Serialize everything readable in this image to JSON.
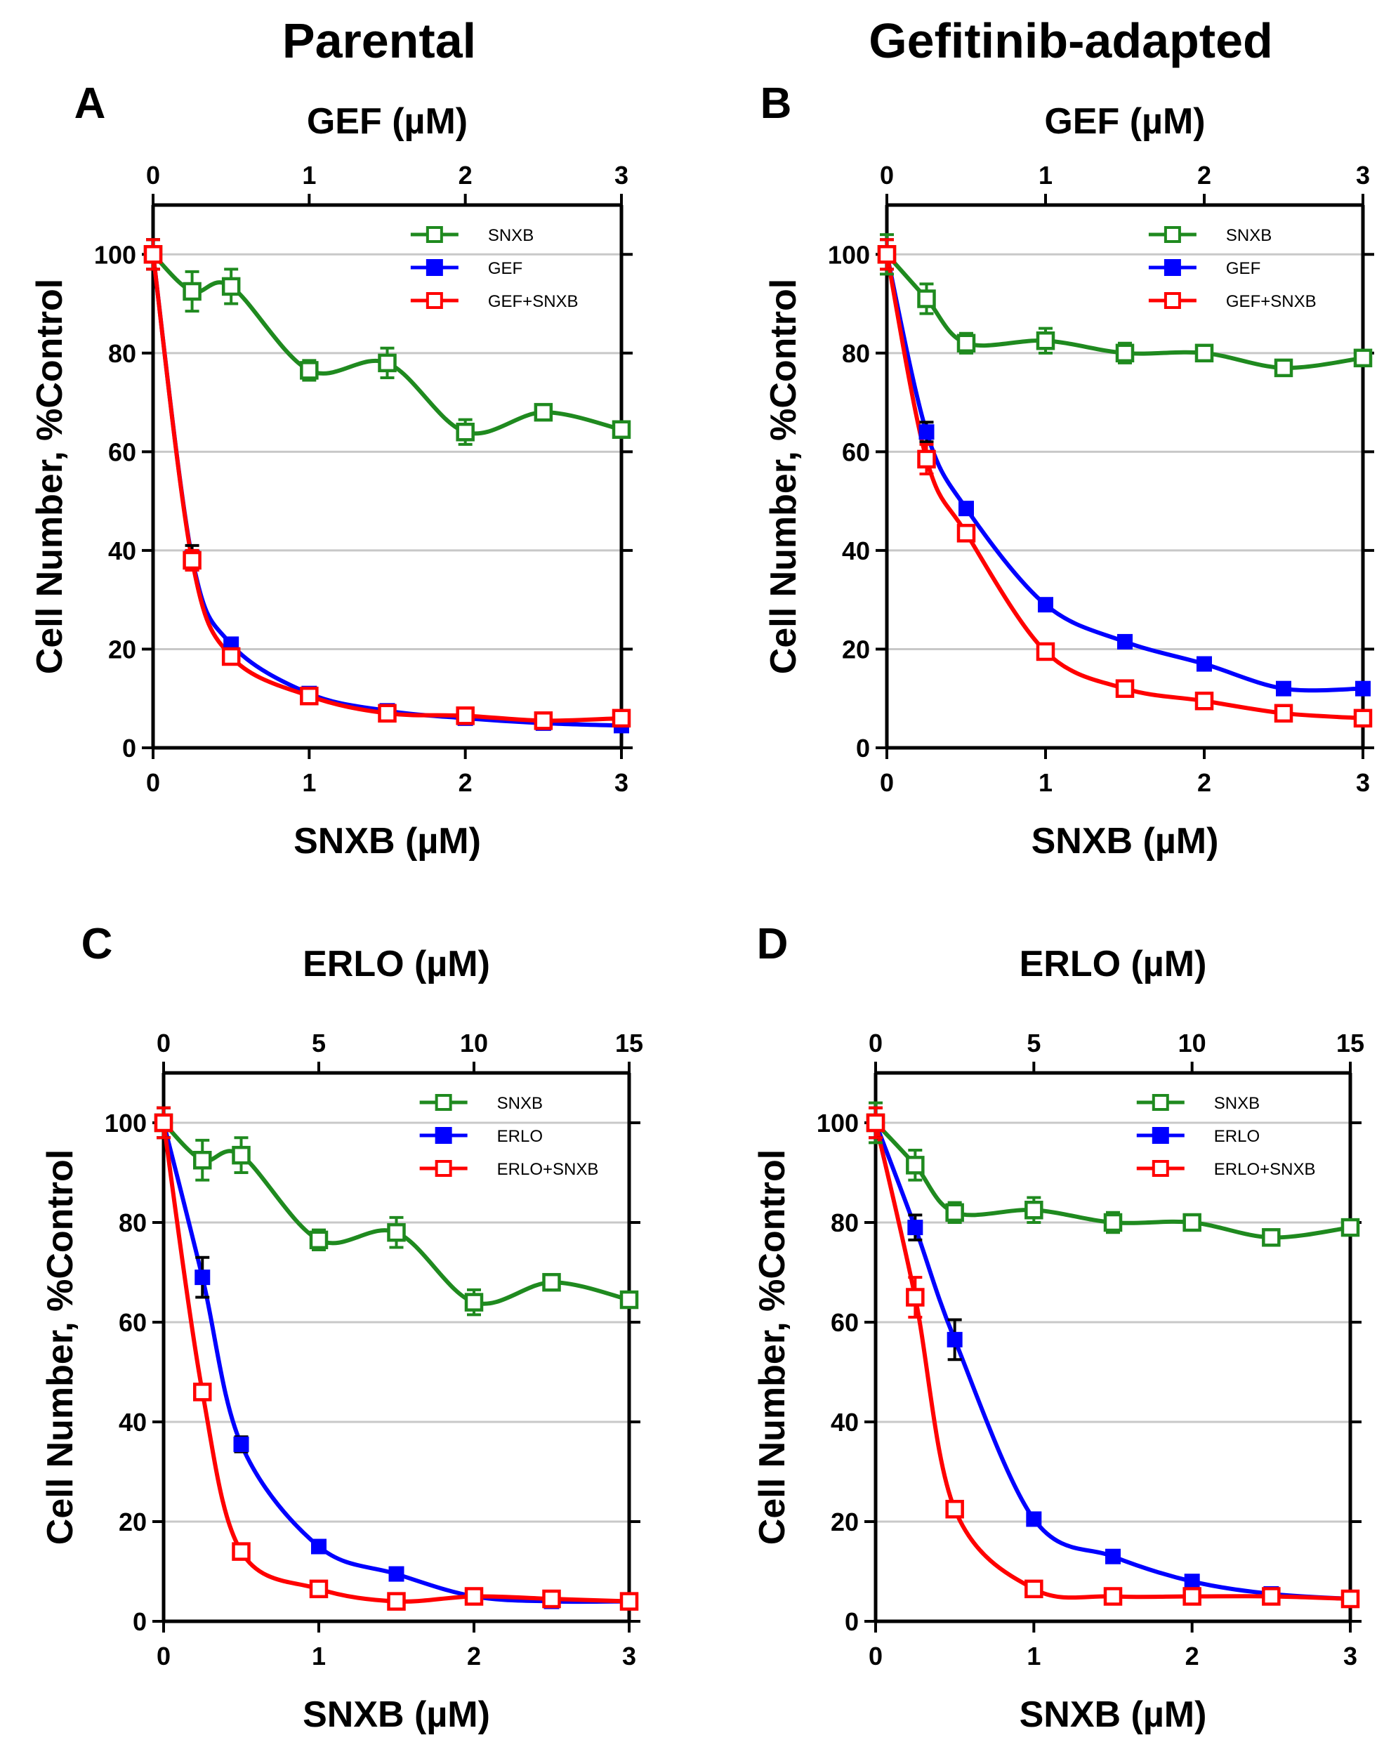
{
  "column_titles": {
    "left": "Parental",
    "right": "Gefitinib-adapted"
  },
  "colors": {
    "SNXB": "#1f8a1f",
    "GEF": "#0000ff",
    "ERLO": "#0000ff",
    "GEF+SNXB": "#ff0000",
    "ERLO+SNXB": "#ff0000",
    "axis": "#000000",
    "grid": "#c8c8c8"
  },
  "chart_data": [
    {
      "panel": "A",
      "type": "scatter",
      "title": "Parental",
      "xlabel": "SNXB (µM)",
      "ylabel": "Cell Number, %Control",
      "top_xlabel": "GEF (µM)",
      "xlim": [
        0,
        3
      ],
      "ylim": [
        0,
        110
      ],
      "xticks": [
        "0",
        "1",
        "2",
        "3"
      ],
      "top_xticks": [
        "0",
        "1",
        "2",
        "3"
      ],
      "yticks": [
        "0",
        "20",
        "40",
        "60",
        "80",
        "100"
      ],
      "x": [
        0,
        0.25,
        0.5,
        1,
        1.5,
        2,
        2.5,
        3
      ],
      "series": [
        {
          "name": "SNXB",
          "marker": "open-square",
          "values": [
            100,
            92.5,
            93.5,
            76.5,
            78,
            64,
            68,
            64.5
          ],
          "errors": [
            3,
            4,
            3.5,
            2,
            3,
            2.5,
            1,
            1
          ]
        },
        {
          "name": "GEF",
          "marker": "filled-square",
          "values": [
            100,
            38.5,
            21,
            11,
            7.5,
            6,
            5,
            4.5
          ],
          "errors": [
            3,
            2.5,
            1,
            1,
            1,
            1,
            1,
            1
          ]
        },
        {
          "name": "GEF+SNXB",
          "marker": "open-square",
          "values": [
            100,
            38,
            18.5,
            10.5,
            7,
            6.5,
            5.5,
            6
          ],
          "errors": [
            3,
            2,
            1,
            1,
            1,
            1,
            1,
            1
          ]
        }
      ],
      "legend": [
        "SNXB",
        "GEF",
        "GEF+SNXB"
      ]
    },
    {
      "panel": "B",
      "type": "scatter",
      "title": "Gefitinib-adapted",
      "xlabel": "SNXB (µM)",
      "ylabel": "Cell Number, %Control",
      "top_xlabel": "GEF (µM)",
      "xlim": [
        0,
        3
      ],
      "ylim": [
        0,
        110
      ],
      "xticks": [
        "0",
        "1",
        "2",
        "3"
      ],
      "top_xticks": [
        "0",
        "1",
        "2",
        "3"
      ],
      "yticks": [
        "0",
        "20",
        "40",
        "60",
        "80",
        "100"
      ],
      "x": [
        0,
        0.25,
        0.5,
        1,
        1.5,
        2,
        2.5,
        3
      ],
      "series": [
        {
          "name": "SNXB",
          "marker": "open-square",
          "values": [
            100,
            91,
            82,
            82.5,
            80,
            80,
            77,
            79
          ],
          "errors": [
            4,
            3,
            2,
            2.5,
            2,
            1,
            1,
            1
          ]
        },
        {
          "name": "GEF",
          "marker": "filled-square",
          "values": [
            100,
            64,
            48.5,
            29,
            21.5,
            17,
            12,
            12
          ],
          "errors": [
            3,
            2,
            1,
            1,
            1,
            1,
            1,
            1
          ]
        },
        {
          "name": "GEF+SNXB",
          "marker": "open-square",
          "values": [
            100,
            58.5,
            43.5,
            19.5,
            12,
            9.5,
            7,
            6
          ],
          "errors": [
            3,
            3,
            1,
            1,
            1,
            1,
            1,
            1
          ]
        }
      ],
      "legend": [
        "SNXB",
        "GEF",
        "GEF+SNXB"
      ]
    },
    {
      "panel": "C",
      "type": "scatter",
      "title": "Parental",
      "xlabel": "SNXB (µM)",
      "ylabel": "Cell Number, %Control",
      "top_xlabel": "ERLO (µM)",
      "xlim": [
        0,
        3
      ],
      "ylim": [
        0,
        110
      ],
      "xticks": [
        "0",
        "1",
        "2",
        "3"
      ],
      "top_xticks": [
        "0",
        "5",
        "10",
        "15"
      ],
      "yticks": [
        "0",
        "20",
        "40",
        "60",
        "80",
        "100"
      ],
      "x": [
        0,
        0.25,
        0.5,
        1,
        1.5,
        2,
        2.5,
        3
      ],
      "series": [
        {
          "name": "SNXB",
          "marker": "open-square",
          "values": [
            100,
            92.5,
            93.5,
            76.5,
            78,
            64,
            68,
            64.5
          ],
          "errors": [
            3,
            4,
            3.5,
            2,
            3,
            2.5,
            1,
            1
          ]
        },
        {
          "name": "ERLO",
          "marker": "filled-square",
          "values": [
            100,
            69,
            35.5,
            15,
            9.5,
            5,
            4,
            4
          ],
          "errors": [
            3,
            4,
            1.5,
            1,
            1,
            1,
            1,
            1
          ]
        },
        {
          "name": "ERLO+SNXB",
          "marker": "open-square",
          "values": [
            100,
            46,
            14,
            6.5,
            4,
            5,
            4.5,
            4
          ],
          "errors": [
            3,
            1,
            1,
            1,
            1,
            1,
            1,
            1
          ]
        }
      ],
      "legend": [
        "SNXB",
        "ERLO",
        "ERLO+SNXB"
      ]
    },
    {
      "panel": "D",
      "type": "scatter",
      "title": "Gefitinib-adapted",
      "xlabel": "SNXB (µM)",
      "ylabel": "Cell Number, %Control",
      "top_xlabel": "ERLO (µM)",
      "xlim": [
        0,
        3
      ],
      "ylim": [
        0,
        110
      ],
      "xticks": [
        "0",
        "1",
        "2",
        "3"
      ],
      "top_xticks": [
        "0",
        "5",
        "10",
        "15"
      ],
      "yticks": [
        "0",
        "20",
        "40",
        "60",
        "80",
        "100"
      ],
      "x": [
        0,
        0.25,
        0.5,
        1,
        1.5,
        2,
        2.5,
        3
      ],
      "series": [
        {
          "name": "SNXB",
          "marker": "open-square",
          "values": [
            100,
            91.5,
            82,
            82.5,
            80,
            80,
            77,
            79
          ],
          "errors": [
            4,
            3,
            2,
            2.5,
            2,
            1,
            1,
            1
          ]
        },
        {
          "name": "ERLO",
          "marker": "filled-square",
          "values": [
            100,
            79,
            56.5,
            20.5,
            13,
            8,
            5.5,
            4.5
          ],
          "errors": [
            3,
            2.5,
            4,
            1,
            1,
            1,
            1,
            1
          ]
        },
        {
          "name": "ERLO+SNXB",
          "marker": "open-square",
          "values": [
            100,
            65,
            22.5,
            6.5,
            5,
            5,
            5,
            4.5
          ],
          "errors": [
            3,
            4,
            1,
            1,
            1,
            1,
            1,
            1
          ]
        }
      ],
      "legend": [
        "SNXB",
        "ERLO",
        "ERLO+SNXB"
      ]
    }
  ]
}
